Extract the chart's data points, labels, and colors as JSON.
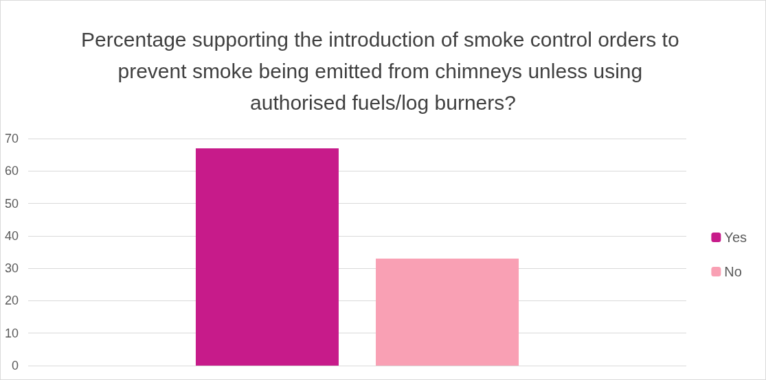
{
  "chart_data": {
    "type": "bar",
    "title": "Percentage supporting the introduction of smoke control orders to prevent smoke being emitted from chimneys unless using authorised fuels/log burners?",
    "categories": [
      null
    ],
    "series": [
      {
        "name": "Yes",
        "color": "#c71b8a",
        "values": [
          67
        ]
      },
      {
        "name": "No",
        "color": "#f9a0b4",
        "values": [
          33
        ]
      }
    ],
    "ylim": [
      0,
      70
    ],
    "yticks": [
      0,
      10,
      20,
      30,
      40,
      50,
      60,
      70
    ],
    "grid": "y",
    "legend": "right"
  }
}
